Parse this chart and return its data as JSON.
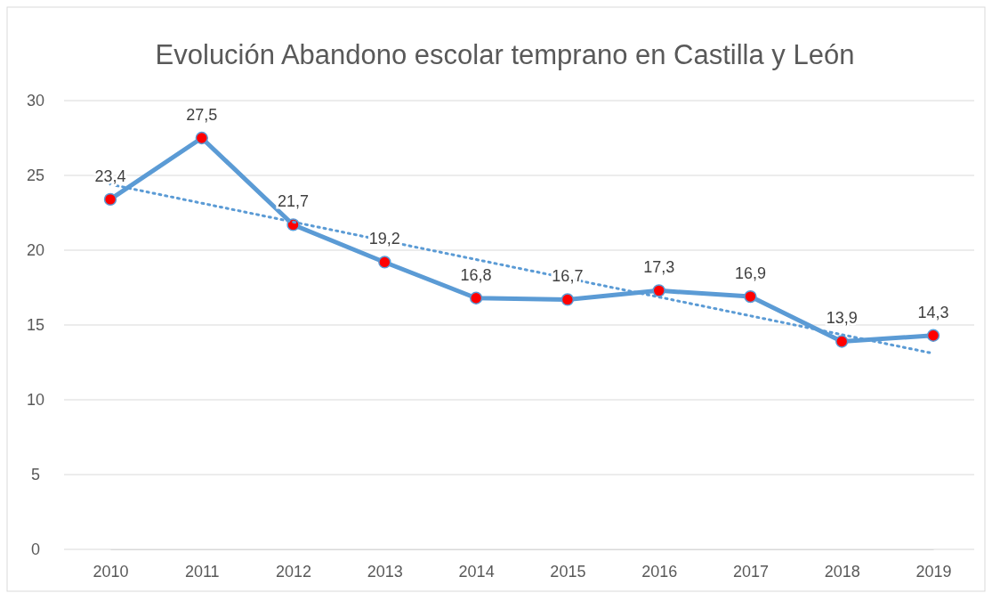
{
  "chart_data": {
    "type": "line",
    "title": "Evolución Abandono escolar temprano en Castilla y León",
    "categories": [
      "2010",
      "2011",
      "2012",
      "2013",
      "2014",
      "2015",
      "2016",
      "2017",
      "2018",
      "2019"
    ],
    "series": [
      {
        "color": "#5b9bd5",
        "colors": [
          "#ff0000",
          "#ff0000",
          "#ff0000",
          "#ff0000",
          "#ff0000",
          "#ff0000",
          "#ff0000",
          "#ff0000",
          "#ff0000",
          "#ff0000"
        ],
        "marker": "circle",
        "line_style": "solid",
        "values": [
          23.4,
          27.5,
          21.7,
          19.2,
          16.8,
          16.7,
          17.3,
          16.9,
          13.9,
          14.3
        ],
        "value_labels": [
          "23,4",
          "27,5",
          "21,7",
          "19,2",
          "16,8",
          "16,7",
          "17,3",
          "16,9",
          "13,9",
          "14,3"
        ]
      },
      {
        "type": "line",
        "color": "#5b9bd5",
        "line_style": "dotted",
        "marker": "none",
        "values": [
          24.4,
          null,
          null,
          null,
          null,
          null,
          null,
          null,
          null,
          13.1
        ]
      }
    ],
    "ylim": [
      0,
      30
    ],
    "yticks": [
      0,
      5,
      10,
      15,
      20,
      25,
      30
    ],
    "grid": "y"
  }
}
